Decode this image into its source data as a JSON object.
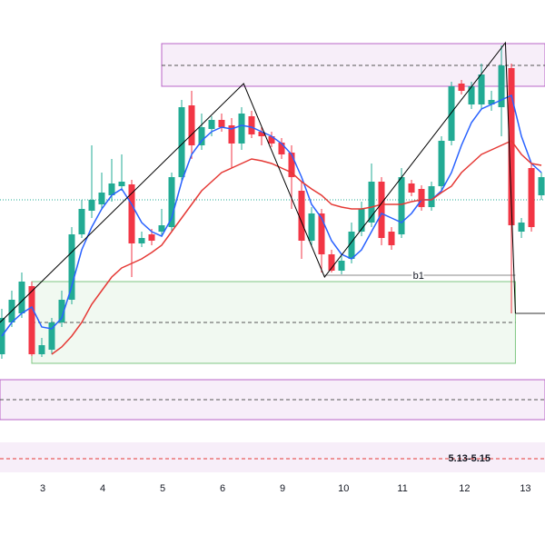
{
  "chart_data": {
    "type": "candlestick",
    "up_color": "#22ab94",
    "down_color": "#f23645",
    "xlim": [
      -0.18,
      54.36
    ],
    "ylim": [
      0,
      600
    ],
    "xticks": [
      {
        "value": 4.1,
        "label": "3"
      },
      {
        "value": 10.1,
        "label": "4"
      },
      {
        "value": 16.1,
        "label": "5"
      },
      {
        "value": 22.1,
        "label": "6"
      },
      {
        "value": 28.1,
        "label": "9"
      },
      {
        "value": 34.2,
        "label": "10"
      },
      {
        "value": 40.1,
        "label": "11"
      },
      {
        "value": 46.3,
        "label": "12"
      },
      {
        "value": 52.4,
        "label": "13"
      }
    ],
    "x": [
      0,
      1,
      2,
      3,
      4,
      5,
      6,
      7,
      8,
      9,
      10,
      11,
      12,
      13,
      14,
      15,
      16,
      17,
      18,
      19,
      20,
      21,
      22,
      23,
      24,
      25,
      26,
      27,
      28,
      29,
      30,
      31,
      32,
      33,
      34,
      35,
      36,
      37,
      38,
      39,
      40,
      41,
      42,
      43,
      44,
      45,
      46,
      47,
      48,
      49,
      50,
      51,
      52,
      53,
      54
    ],
    "open": [
      210,
      245,
      255,
      285,
      210,
      215,
      245,
      270,
      342,
      368,
      375,
      385,
      395,
      397,
      332,
      342,
      345,
      350,
      405,
      484,
      440,
      458,
      468,
      462,
      442,
      472,
      455,
      450,
      443,
      432,
      390,
      335,
      365,
      320,
      302,
      315,
      345,
      355,
      400,
      345,
      342,
      398,
      392,
      372,
      395,
      445,
      508,
      485,
      485,
      485,
      482,
      525,
      345,
      415,
      385
    ],
    "high": [
      260,
      280,
      300,
      290,
      228,
      250,
      280,
      350,
      380,
      440,
      410,
      425,
      430,
      402,
      345,
      348,
      370,
      410,
      490,
      500,
      475,
      472,
      475,
      470,
      482,
      478,
      460,
      455,
      448,
      440,
      400,
      372,
      370,
      325,
      318,
      355,
      378,
      420,
      405,
      350,
      415,
      402,
      396,
      400,
      450,
      510,
      512,
      510,
      530,
      500,
      550,
      530,
      360,
      420,
      410
    ],
    "low": [
      205,
      240,
      250,
      208,
      207,
      210,
      240,
      265,
      338,
      360,
      370,
      378,
      390,
      295,
      328,
      330,
      340,
      345,
      400,
      425,
      435,
      450,
      455,
      415,
      435,
      448,
      440,
      438,
      425,
      370,
      315,
      330,
      300,
      300,
      298,
      310,
      340,
      350,
      330,
      325,
      338,
      384,
      368,
      368,
      390,
      440,
      496,
      480,
      480,
      478,
      450,
      255,
      338,
      345,
      380
    ],
    "close": [
      250,
      270,
      290,
      210,
      220,
      245,
      270,
      342,
      370,
      380,
      388,
      398,
      400,
      332,
      338,
      335,
      352,
      405,
      482,
      440,
      460,
      468,
      460,
      442,
      475,
      452,
      450,
      442,
      430,
      405,
      335,
      365,
      320,
      302,
      313,
      345,
      370,
      400,
      338,
      330,
      405,
      388,
      372,
      395,
      445,
      505,
      500,
      505,
      518,
      490,
      528,
      352,
      355,
      350,
      405
    ],
    "lines": [
      {
        "color": "#2962ff",
        "values": [
          230,
          245,
          255,
          262,
          240,
          238,
          250,
          285,
          325,
          350,
          370,
          385,
          392,
          375,
          355,
          345,
          340,
          360,
          400,
          430,
          445,
          455,
          460,
          458,
          462,
          460,
          455,
          450,
          442,
          430,
          405,
          375,
          360,
          335,
          320,
          315,
          325,
          345,
          365,
          360,
          355,
          365,
          380,
          380,
          390,
          410,
          440,
          465,
          480,
          485,
          490,
          495,
          450,
          420,
          410
        ]
      },
      {
        "color": "#e53935",
        "values": [
          null,
          null,
          null,
          null,
          null,
          210,
          218,
          230,
          245,
          265,
          280,
          295,
          305,
          310,
          315,
          322,
          330,
          345,
          360,
          375,
          390,
          400,
          410,
          415,
          420,
          425,
          423,
          420,
          415,
          410,
          400,
          392,
          385,
          375,
          372,
          370,
          370,
          372,
          375,
          375,
          375,
          378,
          380,
          380,
          388,
          395,
          410,
          420,
          430,
          435,
          440,
          445,
          430,
          420,
          418
        ]
      }
    ],
    "zigzag": {
      "x": [
        -0.18,
        24.2,
        32.3,
        50.4,
        51.4
      ],
      "values": [
        245,
        508,
        295,
        553,
        255
      ]
    },
    "zones": [
      {
        "x0": 16,
        "x1": 54.36,
        "top": 552,
        "bottom": 505,
        "mid": 528,
        "color": "#9c27b0"
      },
      {
        "x0": 3.0,
        "x1": 51.4,
        "top": 290,
        "bottom": 200,
        "mid": 245,
        "color": "#4caf50"
      },
      {
        "x0": -0.18,
        "x1": 54.36,
        "top": 182,
        "bottom": 138,
        "mid": 160,
        "color": "#9c27b0"
      }
    ],
    "band": {
      "top": 113,
      "bottom": 80,
      "mid": 95,
      "label": "5.13-5.15"
    },
    "b1": {
      "x0": 32.3,
      "x1": 51.4,
      "value": 297,
      "label": "b1",
      "label_x": 41.7
    },
    "level": {
      "x0": 51.4,
      "x1": 54.36,
      "value": 255
    },
    "dotted_level": 380
  }
}
